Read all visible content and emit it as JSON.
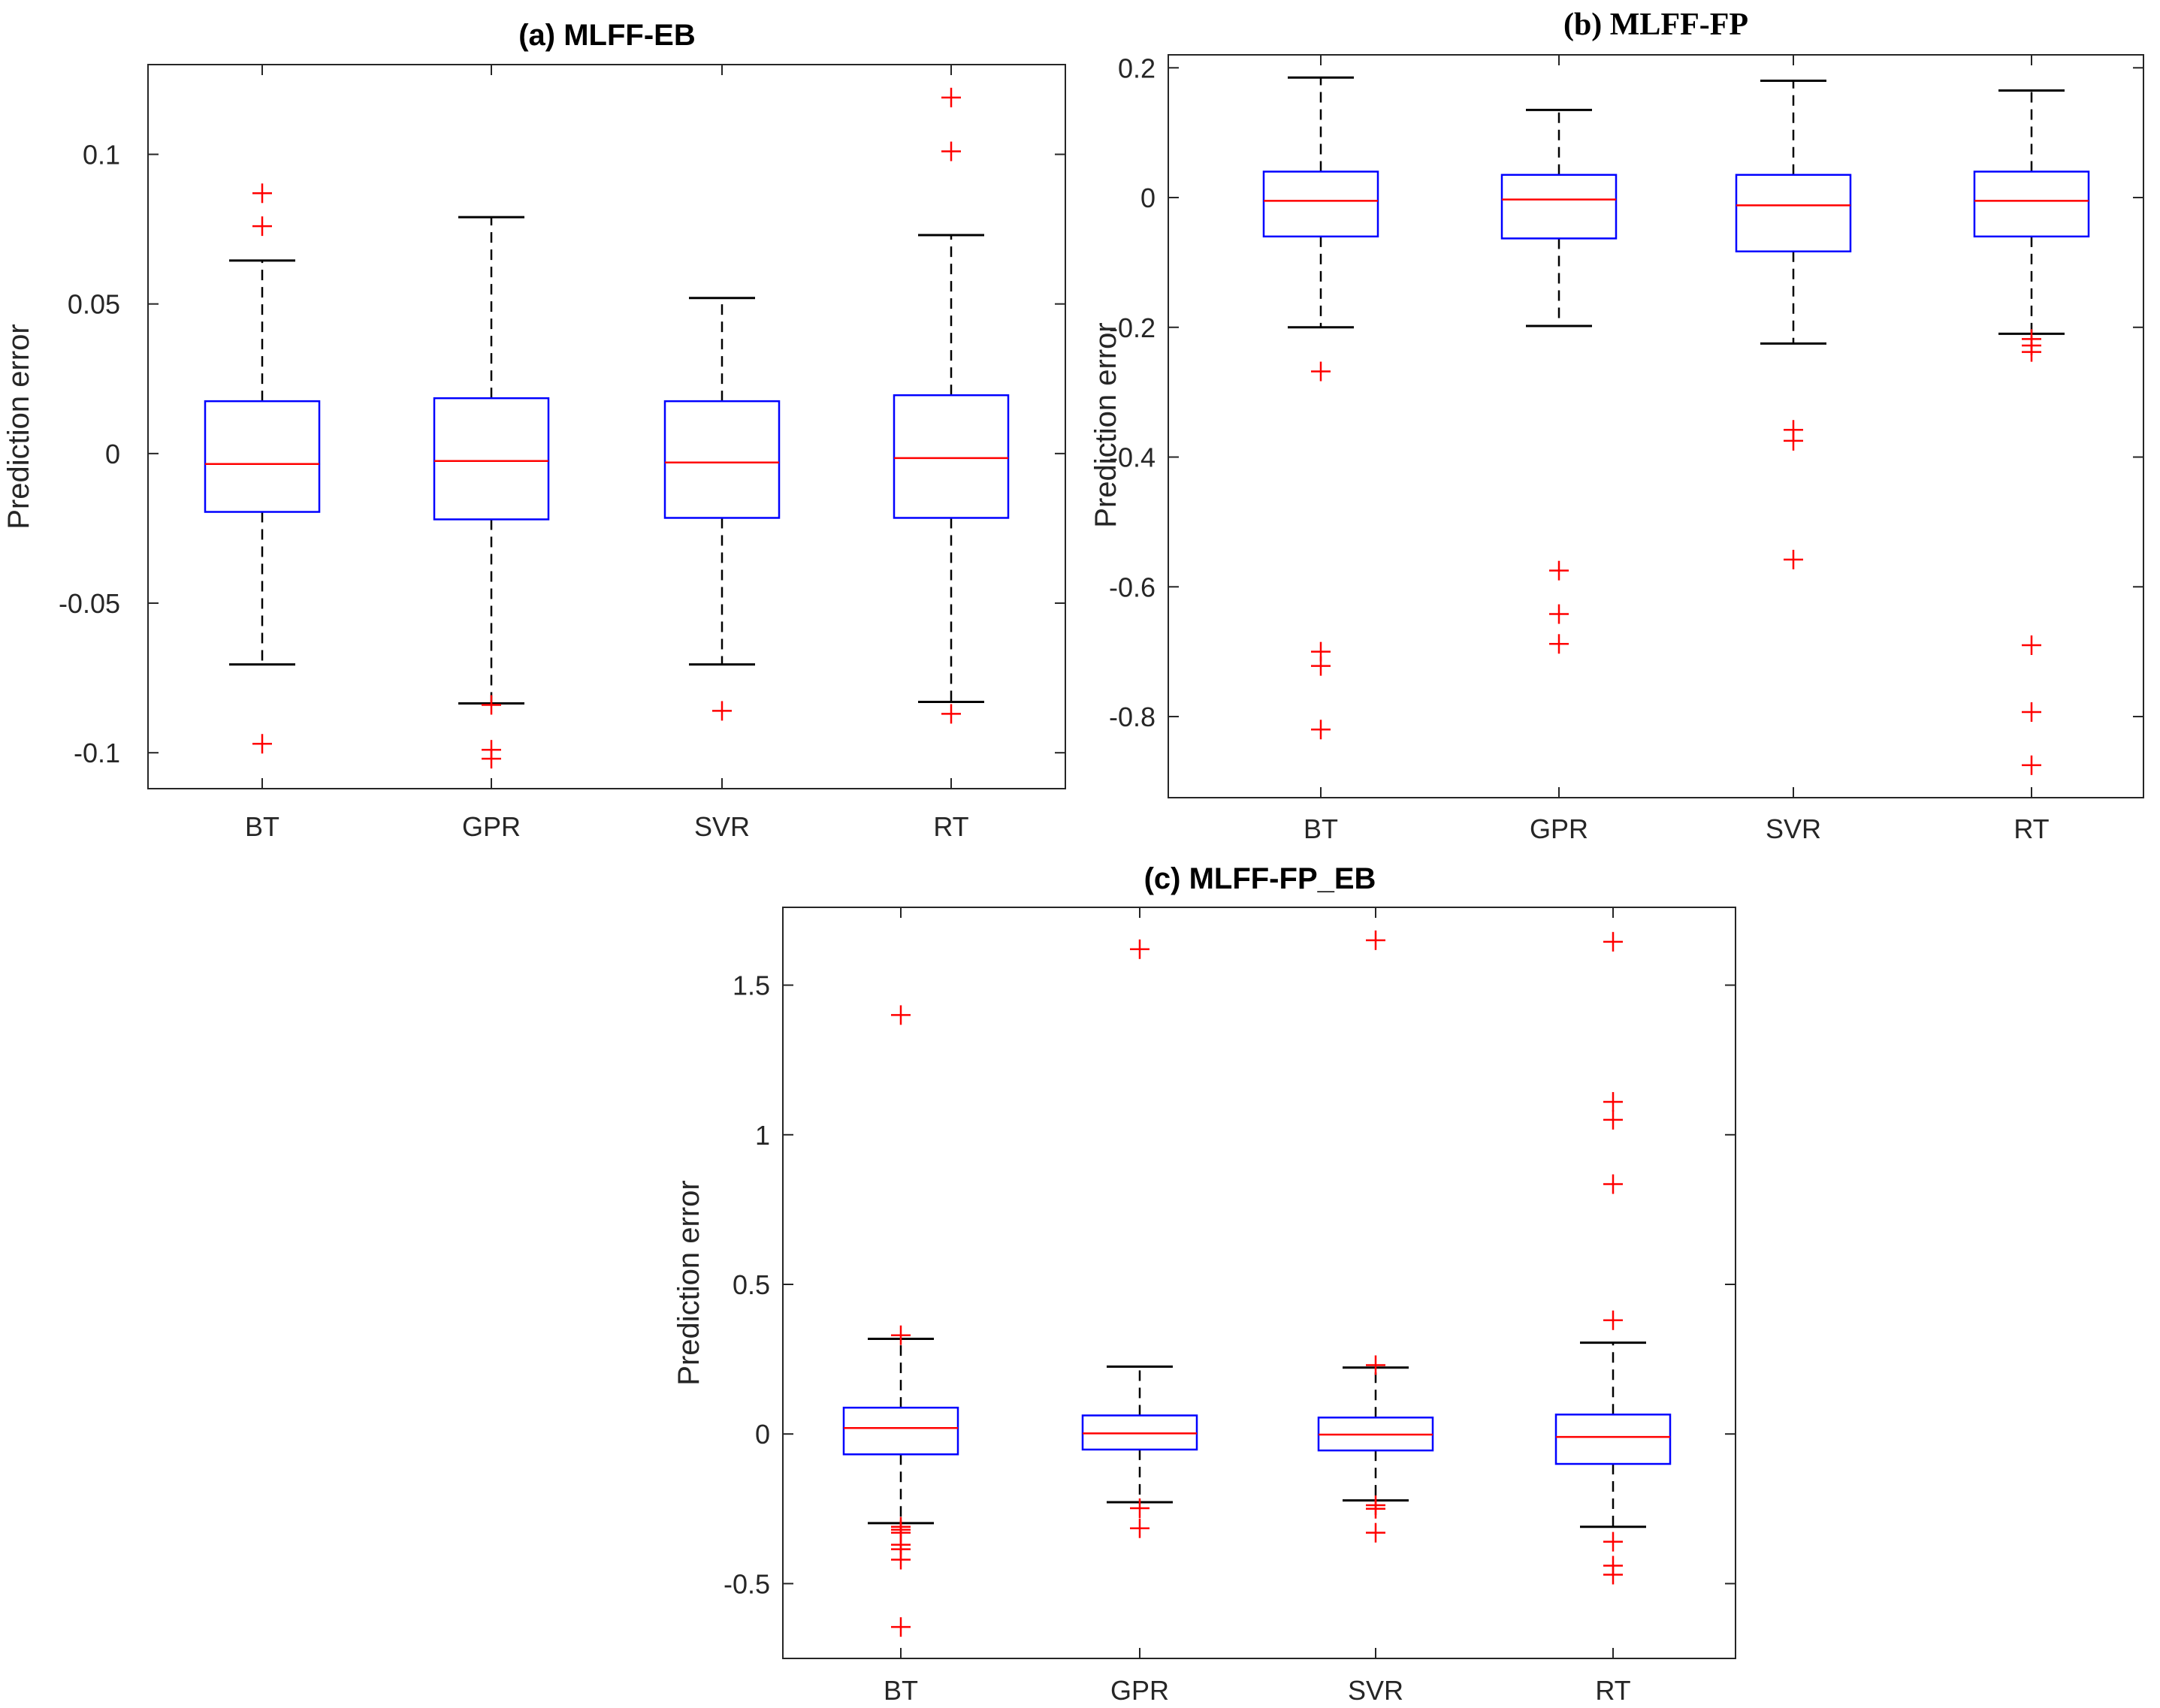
{
  "chart_data": [
    {
      "type": "box",
      "title": "(a) MLFF-EB",
      "ylabel": "Prediction error",
      "categories": [
        "BT",
        "GPR",
        "SVR",
        "RT"
      ],
      "ylim": [
        -0.112,
        0.13
      ],
      "yticks": [
        -0.1,
        -0.05,
        0,
        0.05,
        0.1
      ],
      "yticklabels": [
        "-0.1",
        "-0.05",
        "0",
        "0.05",
        "0.1"
      ],
      "boxes": [
        {
          "q1": -0.0195,
          "median": -0.0035,
          "q3": 0.0175,
          "whisker_low": -0.0705,
          "whisker_high": 0.0645,
          "outliers": [
            0.087,
            0.076,
            -0.097
          ]
        },
        {
          "q1": -0.022,
          "median": -0.0025,
          "q3": 0.0185,
          "whisker_low": -0.0835,
          "whisker_high": 0.079,
          "outliers": [
            -0.084,
            -0.099,
            -0.102
          ]
        },
        {
          "q1": -0.0215,
          "median": -0.003,
          "q3": 0.0175,
          "whisker_low": -0.0705,
          "whisker_high": 0.052,
          "outliers": [
            -0.086
          ]
        },
        {
          "q1": -0.0215,
          "median": -0.0015,
          "q3": 0.0195,
          "whisker_low": -0.083,
          "whisker_high": 0.073,
          "outliers": [
            0.119,
            0.101,
            -0.087
          ]
        }
      ]
    },
    {
      "type": "box",
      "title": "(b)  MLFF-FP",
      "ylabel": "Prediction error",
      "categories": [
        "BT",
        "GPR",
        "SVR",
        "RT"
      ],
      "ylim": [
        -0.925,
        0.22
      ],
      "yticks": [
        -0.8,
        -0.6,
        -0.4,
        -0.2,
        0,
        0.2
      ],
      "yticklabels": [
        "-0.8",
        "-0.6",
        "-0.4",
        "-0.2",
        "0",
        "0.2"
      ],
      "boxes": [
        {
          "q1": -0.06,
          "median": -0.005,
          "q3": 0.04,
          "whisker_low": -0.2,
          "whisker_high": 0.185,
          "outliers": [
            -0.268,
            -0.7,
            -0.722,
            -0.82
          ]
        },
        {
          "q1": -0.063,
          "median": -0.003,
          "q3": 0.035,
          "whisker_low": -0.198,
          "whisker_high": 0.135,
          "outliers": [
            -0.575,
            -0.642,
            -0.688
          ]
        },
        {
          "q1": -0.083,
          "median": -0.012,
          "q3": 0.035,
          "whisker_low": -0.225,
          "whisker_high": 0.18,
          "outliers": [
            -0.358,
            -0.375,
            -0.558
          ]
        },
        {
          "q1": -0.06,
          "median": -0.005,
          "q3": 0.04,
          "whisker_low": -0.21,
          "whisker_high": 0.165,
          "outliers": [
            -0.218,
            -0.228,
            -0.238,
            -0.69,
            -0.793,
            -0.875
          ]
        }
      ]
    },
    {
      "type": "box",
      "title": "(c) MLFF-FP_EB",
      "ylabel": "Prediction error",
      "categories": [
        "BT",
        "GPR",
        "SVR",
        "RT"
      ],
      "ylim": [
        -0.75,
        1.76
      ],
      "yticks": [
        -0.5,
        0,
        0.5,
        1,
        1.5
      ],
      "yticklabels": [
        "-0.5",
        "0",
        "0.5",
        "1",
        "1.5"
      ],
      "boxes": [
        {
          "q1": -0.068,
          "median": 0.02,
          "q3": 0.088,
          "whisker_low": -0.298,
          "whisker_high": 0.318,
          "outliers": [
            1.4,
            0.33,
            -0.31,
            -0.32,
            -0.33,
            -0.37,
            -0.385,
            -0.42,
            -0.645
          ]
        },
        {
          "q1": -0.052,
          "median": 0.002,
          "q3": 0.062,
          "whisker_low": -0.228,
          "whisker_high": 0.225,
          "outliers": [
            1.62,
            -0.248,
            -0.315
          ]
        },
        {
          "q1": -0.055,
          "median": -0.002,
          "q3": 0.055,
          "whisker_low": -0.222,
          "whisker_high": 0.222,
          "outliers": [
            1.65,
            0.23,
            -0.238,
            -0.25,
            -0.33
          ]
        },
        {
          "q1": -0.1,
          "median": -0.01,
          "q3": 0.065,
          "whisker_low": -0.31,
          "whisker_high": 0.305,
          "outliers": [
            1.645,
            1.11,
            1.05,
            0.835,
            0.38,
            -0.36,
            -0.44,
            -0.47
          ]
        }
      ]
    }
  ]
}
